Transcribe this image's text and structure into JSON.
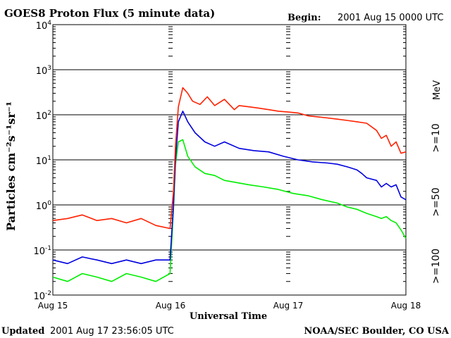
{
  "header": {
    "title": "GOES8 Proton Flux (5 minute data)",
    "begin_label": "Begin:",
    "begin_value": "2001 Aug 15 0000 UTC"
  },
  "footer": {
    "updated_label": "Updated",
    "updated_value": "2001 Aug 17 23:56:05 UTC",
    "credit": "NOAA/SEC Boulder, CO USA"
  },
  "chart_data": {
    "type": "line",
    "title": "GOES8 Proton Flux (5 minute data)",
    "xlabel": "Universal Time",
    "ylabel": "Particles cm⁻²s⁻¹sr⁻¹",
    "y_scale": "log",
    "ylim": [
      0.01,
      10000
    ],
    "xlim": [
      0,
      72
    ],
    "x_unit": "hours since 2001 Aug 15 0000 UTC",
    "x_ticks": [
      {
        "value": 0,
        "label": "Aug 15"
      },
      {
        "value": 24,
        "label": "Aug 16"
      },
      {
        "value": 48,
        "label": "Aug 17"
      },
      {
        "value": 72,
        "label": "Aug 18"
      }
    ],
    "y_ticks": [
      {
        "value": 0.01,
        "base": "10",
        "exp": "-2"
      },
      {
        "value": 0.1,
        "base": "10",
        "exp": "-1"
      },
      {
        "value": 1,
        "base": "10",
        "exp": "0"
      },
      {
        "value": 10,
        "base": "10",
        "exp": "1"
      },
      {
        "value": 100,
        "base": "10",
        "exp": "2"
      },
      {
        "value": 1000,
        "base": "10",
        "exp": "3"
      },
      {
        "value": 10000,
        "base": "10",
        "exp": "4"
      }
    ],
    "unit_label": "MeV",
    "series": [
      {
        "name": ">=10",
        "color": "#ff2000",
        "x": [
          0,
          3,
          6,
          9,
          12,
          15,
          18,
          21,
          23.9,
          24.6,
          25,
          25.6,
          26.5,
          27.5,
          28.5,
          30,
          31.5,
          33,
          35,
          37,
          38,
          40,
          42,
          44,
          46,
          48,
          50,
          52,
          54,
          56,
          58,
          60,
          62,
          64,
          66,
          67,
          68,
          69,
          70,
          71,
          72
        ],
        "values": [
          0.45,
          0.5,
          0.6,
          0.45,
          0.5,
          0.4,
          0.5,
          0.35,
          0.3,
          2,
          20,
          150,
          400,
          300,
          200,
          170,
          250,
          160,
          220,
          130,
          160,
          150,
          140,
          130,
          120,
          115,
          110,
          95,
          90,
          85,
          80,
          75,
          70,
          65,
          45,
          30,
          35,
          20,
          25,
          14,
          15
        ]
      },
      {
        "name": ">=50",
        "color": "#0000e0",
        "x": [
          0,
          3,
          6,
          9,
          12,
          15,
          18,
          21,
          23.9,
          24.6,
          25,
          25.6,
          26.5,
          27.5,
          29,
          31,
          33,
          35,
          38,
          41,
          44,
          47,
          50,
          53,
          56,
          58,
          60,
          61,
          62,
          63,
          64,
          66,
          67,
          68,
          69,
          70,
          71,
          72
        ],
        "values": [
          0.06,
          0.05,
          0.07,
          0.06,
          0.05,
          0.06,
          0.05,
          0.06,
          0.06,
          1,
          10,
          70,
          120,
          70,
          40,
          25,
          20,
          25,
          18,
          16,
          15,
          12,
          10,
          9,
          8.5,
          8,
          7,
          6.5,
          6,
          5,
          4,
          3.5,
          2.5,
          3,
          2.5,
          2.8,
          1.5,
          1.3
        ]
      },
      {
        "name": ">=100",
        "color": "#00ee00",
        "x": [
          0,
          3,
          6,
          9,
          12,
          15,
          18,
          21,
          23.9,
          24.6,
          25,
          25.6,
          26.5,
          27.5,
          29,
          31,
          33,
          35,
          37,
          40,
          43,
          46,
          49,
          52,
          55,
          58,
          60,
          62,
          64,
          66,
          67,
          68,
          69,
          70,
          71,
          72
        ],
        "values": [
          0.025,
          0.02,
          0.03,
          0.025,
          0.02,
          0.03,
          0.025,
          0.02,
          0.03,
          0.8,
          8,
          25,
          28,
          12,
          7,
          5,
          4.5,
          3.5,
          3.2,
          2.8,
          2.5,
          2.2,
          1.8,
          1.6,
          1.3,
          1.1,
          0.9,
          0.8,
          0.65,
          0.55,
          0.5,
          0.55,
          0.45,
          0.4,
          0.28,
          0.18
        ]
      }
    ]
  }
}
